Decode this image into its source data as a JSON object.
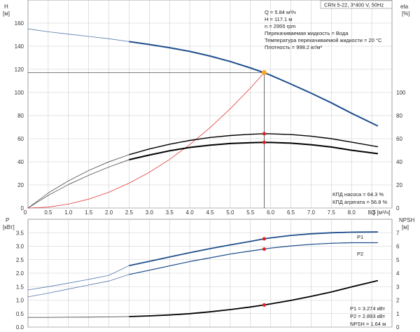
{
  "header": {
    "model": "CRN 5-22, 3*400 V, 50Hz"
  },
  "top_info": [
    "Q = 5.84 м³/ч",
    "H = 117.1 м",
    "n = 2955 rpm",
    "Перекачиваемая жидкость = Вода",
    "Температура перекачиваемой жидкости = 20 °C",
    "Плотность = 998.2 кг/м³"
  ],
  "eff_info": [
    "КПД насоса = 64.3 %",
    "КПД агрегата = 56.8 %"
  ],
  "bottom_info": [
    "P1 = 3.274 кВт",
    "P2 = 2.893 кВт",
    "NPSH = 1.64 м"
  ],
  "colors": {
    "head": "#1f4e8c",
    "system": "#e63c3c",
    "efficiency": "#000000",
    "op_point": "#f7a823",
    "marker": "#e02020"
  },
  "chart_data": [
    {
      "type": "line",
      "xlabel": "Q [м³/ч]",
      "ylabel_left": "H",
      "ylabel_left_unit": "[м]",
      "ylabel_right": "eta",
      "ylabel_right_unit": "[%]",
      "xlim": [
        0,
        9.0
      ],
      "xticks": [
        0.5,
        1.0,
        1.5,
        2.0,
        2.5,
        3.0,
        3.5,
        4.0,
        4.5,
        5.0,
        5.5,
        6.0,
        6.5,
        7.0,
        7.5,
        8.0,
        8.5
      ],
      "ylim_left": [
        0,
        180
      ],
      "yticks_left": [
        0,
        20,
        40,
        60,
        80,
        100,
        120,
        140,
        160
      ],
      "ylim_right": [
        0,
        180
      ],
      "yticks_right": [
        0,
        20,
        40,
        60,
        80,
        100
      ],
      "series": [
        {
          "name": "H",
          "axis": "left",
          "x": [
            0,
            0.5,
            1.0,
            1.5,
            2.0,
            2.5,
            3.0,
            3.5,
            4.0,
            4.5,
            5.0,
            5.5,
            5.84,
            6.0,
            6.5,
            7.0,
            7.5,
            8.0,
            8.65
          ],
          "y": [
            155,
            152.5,
            150.5,
            148.5,
            146.5,
            144,
            141.5,
            138.7,
            135.5,
            131.5,
            126.8,
            121.2,
            117.1,
            114.9,
            107.3,
            99.4,
            91,
            82,
            71
          ]
        },
        {
          "name": "system",
          "axis": "left",
          "x": [
            0,
            0.5,
            1.0,
            1.5,
            2.0,
            2.5,
            3.0,
            3.5,
            4.0,
            4.5,
            5.0,
            5.5,
            5.84
          ],
          "y": [
            0,
            0.8,
            3.4,
            7.7,
            13.7,
            21.5,
            30.9,
            42,
            54.9,
            69.5,
            85.9,
            103.9,
            117.1
          ]
        },
        {
          "name": "eta_pump",
          "axis": "right",
          "x": [
            0,
            0.5,
            1.0,
            1.5,
            2.0,
            2.5,
            3.0,
            3.5,
            4.0,
            4.5,
            5.0,
            5.5,
            5.84,
            6.0,
            6.5,
            7.0,
            7.5,
            8.0,
            8.65
          ],
          "y": [
            0,
            13,
            23.5,
            32.5,
            40,
            46.2,
            51.1,
            55.2,
            58.5,
            61,
            62.7,
            63.8,
            64.3,
            64.2,
            63.6,
            62.2,
            60,
            57,
            53
          ]
        },
        {
          "name": "eta_unit",
          "axis": "right",
          "x": [
            0,
            0.5,
            1.0,
            1.5,
            2.0,
            2.5,
            3.0,
            3.5,
            4.0,
            4.5,
            5.0,
            5.5,
            5.84,
            6.0,
            6.5,
            7.0,
            7.5,
            8.0,
            8.65
          ],
          "y": [
            0,
            11,
            20.3,
            28.3,
            35.5,
            41.8,
            45.8,
            49.5,
            52.4,
            54.4,
            55.8,
            56.5,
            56.8,
            56.7,
            56.1,
            54.8,
            52.8,
            50,
            47
          ]
        }
      ],
      "operating_point": {
        "x": 5.84,
        "H": 117.1,
        "eta_pump": 64.3,
        "eta_unit": 56.8
      }
    },
    {
      "type": "line",
      "xlabel": "",
      "ylabel_left": "P",
      "ylabel_left_unit": "[кВт]",
      "ylabel_right": "NPSH",
      "ylabel_right_unit": "[м]",
      "xlim": [
        0,
        9.0
      ],
      "ylim_left": [
        0,
        4.0
      ],
      "yticks_left": [
        0.0,
        0.5,
        1.0,
        1.5,
        2.0,
        2.5,
        3.0,
        3.5
      ],
      "ylim_right": [
        0,
        8
      ],
      "yticks_right": [
        0,
        1,
        2,
        3,
        4,
        5,
        6,
        7
      ],
      "series": [
        {
          "name": "P1",
          "axis": "left",
          "x": [
            0,
            0.5,
            1.0,
            1.5,
            2.0,
            2.5,
            3.0,
            3.5,
            4.0,
            4.5,
            5.0,
            5.5,
            5.84,
            6.0,
            6.5,
            7.0,
            7.5,
            8.0,
            8.65
          ],
          "y": [
            1.38,
            1.5,
            1.63,
            1.77,
            1.92,
            2.28,
            2.44,
            2.6,
            2.76,
            2.91,
            3.05,
            3.18,
            3.274,
            3.31,
            3.4,
            3.46,
            3.5,
            3.52,
            3.53
          ]
        },
        {
          "name": "P2",
          "axis": "left",
          "x": [
            0,
            0.5,
            1.0,
            1.5,
            2.0,
            2.5,
            3.0,
            3.5,
            4.0,
            4.5,
            5.0,
            5.5,
            5.84,
            6.0,
            6.5,
            7.0,
            7.5,
            8.0,
            8.65
          ],
          "y": [
            1.12,
            1.26,
            1.41,
            1.56,
            1.71,
            1.95,
            2.11,
            2.27,
            2.43,
            2.57,
            2.71,
            2.82,
            2.893,
            2.93,
            3.01,
            3.07,
            3.11,
            3.13,
            3.13
          ]
        },
        {
          "name": "NPSH",
          "axis": "right",
          "x": [
            0,
            0.5,
            1.0,
            1.5,
            2.0,
            2.5,
            3.0,
            3.5,
            4.0,
            4.5,
            5.0,
            5.5,
            5.84,
            6.0,
            6.5,
            7.0,
            7.5,
            8.0,
            8.65
          ],
          "y": [
            0.72,
            0.72,
            0.73,
            0.74,
            0.76,
            0.78,
            0.83,
            0.9,
            1.0,
            1.13,
            1.3,
            1.49,
            1.64,
            1.72,
            1.98,
            2.28,
            2.6,
            2.98,
            3.45
          ]
        }
      ],
      "operating_point": {
        "x": 5.84,
        "P1": 3.274,
        "P2": 2.893,
        "NPSH": 1.64
      },
      "series_labels": [
        "P1",
        "P2"
      ]
    }
  ]
}
